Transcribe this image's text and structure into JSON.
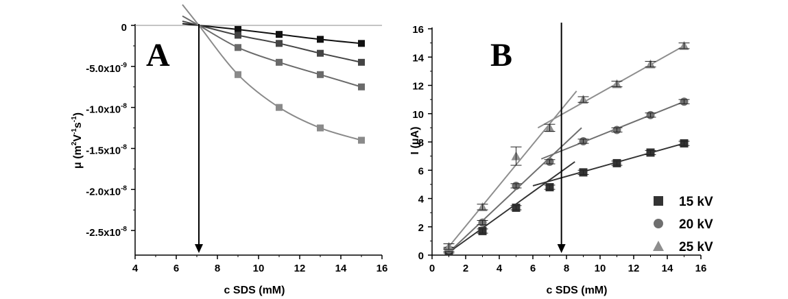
{
  "chart_data": [
    {
      "panel_label": "A",
      "type": "line",
      "xlabel": "c SDS (mM)",
      "ylabel_parts": {
        "a": "μ (m",
        "sup1": "2",
        "b": "V",
        "sup2": "-1",
        "c": "s",
        "sup3": "-1",
        "d": ")"
      },
      "xlim": [
        4,
        16
      ],
      "ylim": [
        -2.8e-08,
        0
      ],
      "xticks": [
        4,
        6,
        8,
        10,
        12,
        14,
        16
      ],
      "yticks": [
        {
          "value": 0,
          "mant": "0",
          "exp": ""
        },
        {
          "value": -5e-09,
          "mant": "-5.0x10",
          "exp": "-9"
        },
        {
          "value": -1e-08,
          "mant": "-1.0x10",
          "exp": "-8"
        },
        {
          "value": -1.5e-08,
          "mant": "-1.5x10",
          "exp": "-8"
        },
        {
          "value": -2e-08,
          "mant": "-2.0x10",
          "exp": "-8"
        },
        {
          "value": -2.5e-08,
          "mant": "-2.5x10",
          "exp": "-8"
        }
      ],
      "arrow_x": 7.1,
      "intersection": {
        "x": 7.1,
        "y": 0
      },
      "zero_line": true,
      "series": [
        {
          "color": "#111111",
          "x": [
            9,
            11,
            13,
            15
          ],
          "y": [
            -5e-10,
            -1.1e-09,
            -1.7e-09,
            -2.2e-09
          ]
        },
        {
          "color": "#444444",
          "x": [
            9,
            11,
            13,
            15
          ],
          "y": [
            -1.2e-09,
            -2.2e-09,
            -3.4e-09,
            -4.5e-09
          ]
        },
        {
          "color": "#6a6a6a",
          "x": [
            9,
            11,
            13,
            15
          ],
          "y": [
            -2.7e-09,
            -4.5e-09,
            -6e-09,
            -7.5e-09
          ]
        },
        {
          "color": "#8a8a8a",
          "x": [
            9,
            11,
            13,
            15
          ],
          "y": [
            -6e-09,
            -1e-08,
            -1.25e-08,
            -1.4e-08
          ]
        }
      ]
    },
    {
      "panel_label": "B",
      "type": "scatter",
      "xlabel": "c SDS (mM)",
      "ylabel": "I (μA)",
      "xlim": [
        0,
        16
      ],
      "ylim": [
        0,
        16
      ],
      "xticks": [
        0,
        2,
        4,
        6,
        8,
        10,
        12,
        14,
        16
      ],
      "yticks": [
        0,
        2,
        4,
        6,
        8,
        10,
        12,
        14,
        16
      ],
      "arrow_x": 7.7,
      "legend_position": "bottom-right",
      "series": [
        {
          "name": "15 kV",
          "marker": "square",
          "color": "#333333",
          "x": [
            1,
            3,
            5,
            7,
            9,
            11,
            13,
            15
          ],
          "y": [
            0.3,
            1.7,
            3.35,
            4.8,
            5.85,
            6.5,
            7.25,
            7.9
          ],
          "err": [
            0.15,
            0.15,
            0.15,
            0.15,
            0.15,
            0.15,
            0.15,
            0.15
          ],
          "fit_low": [
            [
              1,
              0.2
            ],
            [
              8.5,
              6.6
            ]
          ],
          "fit_high": [
            [
              6,
              4.9
            ],
            [
              15,
              7.9
            ]
          ]
        },
        {
          "name": "20 kV",
          "marker": "circle",
          "color": "#6f6f6f",
          "x": [
            1,
            3,
            5,
            7,
            9,
            11,
            13,
            15
          ],
          "y": [
            0.4,
            2.3,
            4.9,
            6.6,
            8.05,
            8.85,
            9.9,
            10.85
          ],
          "err": [
            0.15,
            0.15,
            0.15,
            0.15,
            0.15,
            0.15,
            0.15,
            0.15
          ],
          "fit_low": [
            [
              1,
              0.2
            ],
            [
              8.9,
              9.0
            ]
          ],
          "fit_high": [
            [
              6.5,
              6.8
            ],
            [
              15,
              10.85
            ]
          ]
        },
        {
          "name": "25 kV",
          "marker": "triangle",
          "color": "#8e8e8e",
          "x": [
            1,
            3,
            5,
            7,
            9,
            11,
            13,
            15
          ],
          "y": [
            0.6,
            3.4,
            7.0,
            9.0,
            11.0,
            12.1,
            13.5,
            14.8
          ],
          "err": [
            0.2,
            0.2,
            0.65,
            0.25,
            0.2,
            0.2,
            0.2,
            0.2
          ],
          "fit_low": [
            [
              1,
              0.6
            ],
            [
              8.6,
              11.6
            ]
          ],
          "fit_high": [
            [
              6.3,
              9.0
            ],
            [
              15,
              14.8
            ]
          ]
        }
      ]
    }
  ]
}
